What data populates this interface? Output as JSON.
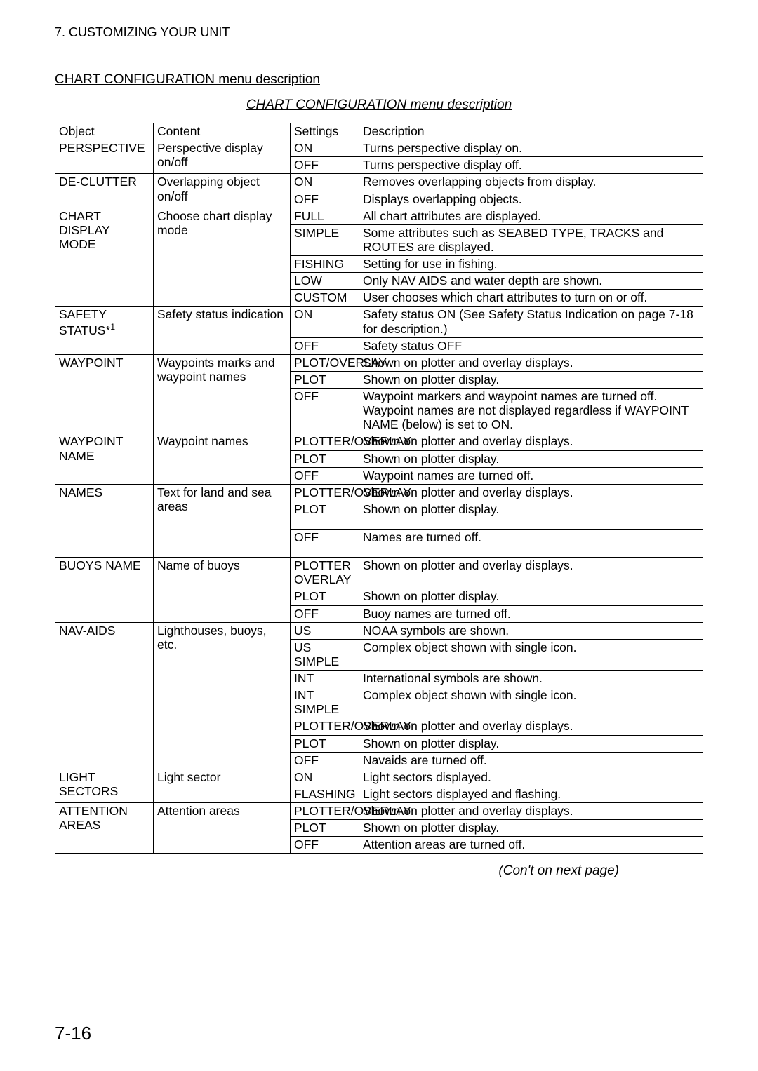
{
  "chapter": "7. CUSTOMIZING YOUR UNIT",
  "section_heading": "CHART CONFIGURATION menu description",
  "table_caption": "CHART CONFIGURATION menu description",
  "headers": {
    "object": "Object",
    "content": "Content",
    "settings": "Settings",
    "description": "Description"
  },
  "groups": [
    {
      "object": "PERSPECTIVE",
      "content": "Perspective display on/off",
      "rows": [
        {
          "setting": "ON",
          "desc": "Turns perspective display on."
        },
        {
          "setting": "OFF",
          "desc": "Turns perspective display off."
        }
      ]
    },
    {
      "object": "DE-CLUTTER",
      "content": "Overlapping object on/off",
      "rows": [
        {
          "setting": "ON",
          "desc": "Removes overlapping objects from display."
        },
        {
          "setting": "OFF",
          "desc": "Displays overlapping objects."
        }
      ]
    },
    {
      "object": "CHART DISPLAY MODE",
      "content": "Choose chart display mode",
      "rows": [
        {
          "setting": "FULL",
          "desc": "All chart attributes are displayed."
        },
        {
          "setting": "SIMPLE",
          "desc": "Some attributes such as SEABED TYPE, TRACKS and ROUTES are displayed."
        },
        {
          "setting": "FISHING",
          "desc": "Setting for use in fishing."
        },
        {
          "setting": "LOW",
          "desc": "Only NAV AIDS and water depth are shown."
        },
        {
          "setting": "CUSTOM",
          "desc": "User chooses which chart attributes to turn on or off."
        }
      ]
    },
    {
      "object": "SAFETY STATUS*",
      "sup": "1",
      "content": "Safety status indication",
      "rows": [
        {
          "setting": "ON",
          "desc": "Safety status ON (See Safety Status Indication on page 7-18 for description.)"
        },
        {
          "setting": "OFF",
          "desc": "Safety status OFF"
        }
      ]
    },
    {
      "object": "WAYPOINT",
      "content": "Waypoints marks and waypoint names",
      "rows": [
        {
          "setting": "PLOT/OVERLAY",
          "desc": "Shown on plotter and overlay displays."
        },
        {
          "setting": "PLOT",
          "desc": "Shown on plotter display."
        },
        {
          "setting": "OFF",
          "desc": "Waypoint markers and waypoint names are turned off. Waypoint names are not displayed regardless if WAYPOINT NAME (below) is set to ON."
        }
      ]
    },
    {
      "object": "WAYPOINT NAME",
      "content": "Waypoint names",
      "rows": [
        {
          "setting": "PLOTTER/OVERLAY",
          "desc": "Shown on plotter and overlay displays."
        },
        {
          "setting": "PLOT",
          "desc": "Shown on plotter display."
        },
        {
          "setting": "OFF",
          "desc": "Waypoint names are turned off."
        }
      ]
    },
    {
      "object": "NAMES",
      "content": "Text for land and sea areas",
      "rows": [
        {
          "setting": "PLOTTER/OVERLAY",
          "desc": "Shown on plotter and overlay displays."
        },
        {
          "setting": "PLOT",
          "desc": "Shown on plotter display.",
          "tall": true
        },
        {
          "setting": "OFF",
          "desc": "Names are turned off.",
          "tall": true
        }
      ]
    },
    {
      "object": "BUOYS NAME",
      "content": "Name of buoys",
      "rows": [
        {
          "setting": "PLOTTER OVERLAY",
          "desc": "Shown on plotter and overlay displays."
        },
        {
          "setting": "PLOT",
          "desc": "Shown on plotter display."
        },
        {
          "setting": "OFF",
          "desc": "Buoy names are turned off."
        }
      ]
    },
    {
      "object": "NAV-AIDS",
      "content": "Lighthouses, buoys, etc.",
      "rows": [
        {
          "setting": "US",
          "desc": "NOAA symbols are shown."
        },
        {
          "setting": "US SIMPLE",
          "desc": "Complex object shown with single icon."
        },
        {
          "setting": "INT",
          "desc": "International symbols are shown."
        },
        {
          "setting": "INT SIMPLE",
          "desc": "Complex object shown with single icon."
        },
        {
          "setting": "PLOTTER/OVERLAY",
          "desc": "Shown on plotter and overlay displays."
        },
        {
          "setting": "PLOT",
          "desc": "Shown on plotter display."
        },
        {
          "setting": "OFF",
          "desc": "Navaids are turned off."
        }
      ]
    },
    {
      "object": "LIGHT SECTORS",
      "content": "Light sector",
      "rows": [
        {
          "setting": "ON",
          "desc": "Light sectors displayed."
        },
        {
          "setting": "FLASHING",
          "desc": "Light sectors displayed and flashing."
        }
      ]
    },
    {
      "object": "ATTENTION AREAS",
      "content": "Attention areas",
      "rows": [
        {
          "setting": "PLOTTER/OVERLAY",
          "desc": "Shown on plotter and overlay displays."
        },
        {
          "setting": "PLOT",
          "desc": "Shown on plotter display."
        },
        {
          "setting": "OFF",
          "desc": "Attention areas are turned off."
        }
      ]
    }
  ],
  "continuation_note": "(Con't on next page)",
  "page_number": "7-16"
}
